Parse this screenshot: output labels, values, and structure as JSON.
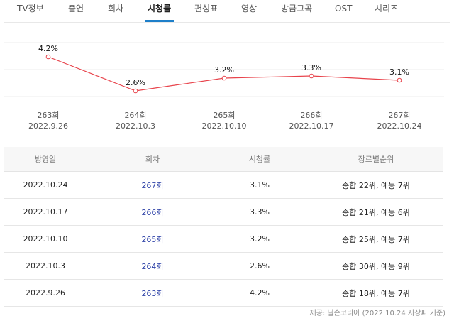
{
  "tabs": [
    {
      "label": "TV정보",
      "active": false
    },
    {
      "label": "출연",
      "active": false
    },
    {
      "label": "회차",
      "active": false
    },
    {
      "label": "시청률",
      "active": true
    },
    {
      "label": "편성표",
      "active": false
    },
    {
      "label": "영상",
      "active": false
    },
    {
      "label": "방금그곡",
      "active": false
    },
    {
      "label": "OST",
      "active": false
    },
    {
      "label": "시리즈",
      "active": false
    }
  ],
  "chart_data": {
    "type": "line",
    "categories": [
      "263회\n2022.9.26",
      "264회\n2022.10.3",
      "265회\n2022.10.10",
      "266회\n2022.10.17",
      "267회\n2022.10.24"
    ],
    "episodes": [
      "263회",
      "264회",
      "265회",
      "266회",
      "267회"
    ],
    "dates": [
      "2022.9.26",
      "2022.10.3",
      "2022.10.10",
      "2022.10.17",
      "2022.10.24"
    ],
    "values": [
      4.2,
      2.6,
      3.2,
      3.3,
      3.1
    ],
    "value_labels": [
      "4.2%",
      "2.6%",
      "3.2%",
      "3.3%",
      "3.1%"
    ],
    "line_color": "#e8434b",
    "grid": true
  },
  "table": {
    "headers": [
      "방영일",
      "회차",
      "시청률",
      "장르별순위"
    ],
    "rows": [
      {
        "date": "2022.10.24",
        "episode": "267회",
        "rating": "3.1%",
        "rank": "종합 22위, 예능 7위"
      },
      {
        "date": "2022.10.17",
        "episode": "266회",
        "rating": "3.3%",
        "rank": "종합 21위, 예능 6위"
      },
      {
        "date": "2022.10.10",
        "episode": "265회",
        "rating": "3.2%",
        "rank": "종합 25위, 예능 7위"
      },
      {
        "date": "2022.10.3",
        "episode": "264회",
        "rating": "2.6%",
        "rank": "종합 30위, 예능 9위"
      },
      {
        "date": "2022.9.26",
        "episode": "263회",
        "rating": "4.2%",
        "rank": "종합 18위, 예능 7위"
      }
    ]
  },
  "source": "제공: 닐슨코리아 (2022.10.24 지상파 기준)",
  "colors": {
    "accent": "#1e7fc9",
    "link": "#2b3fa6"
  }
}
